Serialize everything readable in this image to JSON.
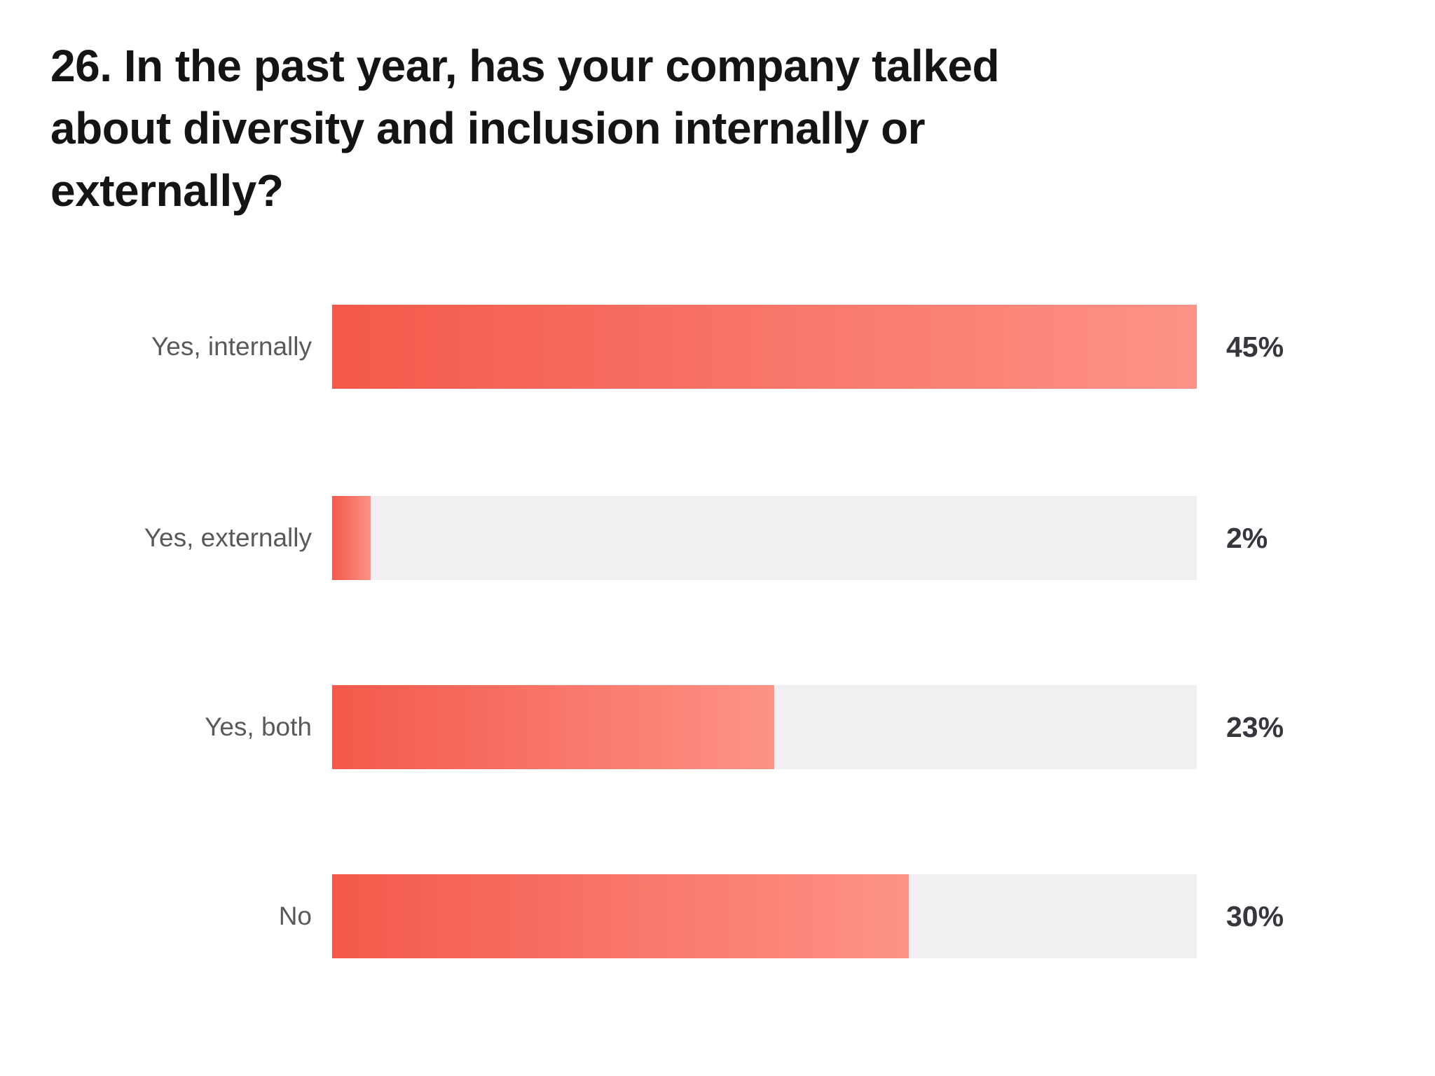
{
  "page": {
    "background": "#ffffff"
  },
  "title": {
    "full": "26. In the past year, has your company talked about diversity and inclusion internally or externally?",
    "lines": [
      "26. In the past year, has your company talked",
      "about diversity and inclusion internally or",
      "externally?"
    ]
  },
  "chart_data": {
    "type": "bar",
    "orientation": "horizontal",
    "title": "26. In the past year, has your company talked about diversity and inclusion internally or externally?",
    "categories": [
      "Yes, internally",
      "Yes, externally",
      "Yes, both",
      "No"
    ],
    "values": [
      45,
      2,
      23,
      30
    ],
    "value_labels": [
      "45%",
      "2%",
      "23%",
      "30%"
    ],
    "unit": "%",
    "xlabel": "",
    "ylabel": "",
    "xlim": [
      0,
      45
    ],
    "bars_scaled_to_max_value": true,
    "grid": false,
    "legend": false,
    "axis_ticks": false,
    "colors": {
      "bar_gradient_start": "#f3594a",
      "bar_gradient_end": "#fd9287",
      "track": "#f0eff2",
      "category_label": "#58595c",
      "value_label": "#36373c",
      "title": "#141417"
    }
  },
  "rows": [
    {
      "label": "Yes, internally",
      "value_label": "45%",
      "fill_percent": 100
    },
    {
      "label": "Yes, externally",
      "value_label": "2%",
      "fill_percent": 4.44
    },
    {
      "label": "Yes, both",
      "value_label": "23%",
      "fill_percent": 51.11
    },
    {
      "label": "No",
      "value_label": "30%",
      "fill_percent": 66.67
    }
  ]
}
